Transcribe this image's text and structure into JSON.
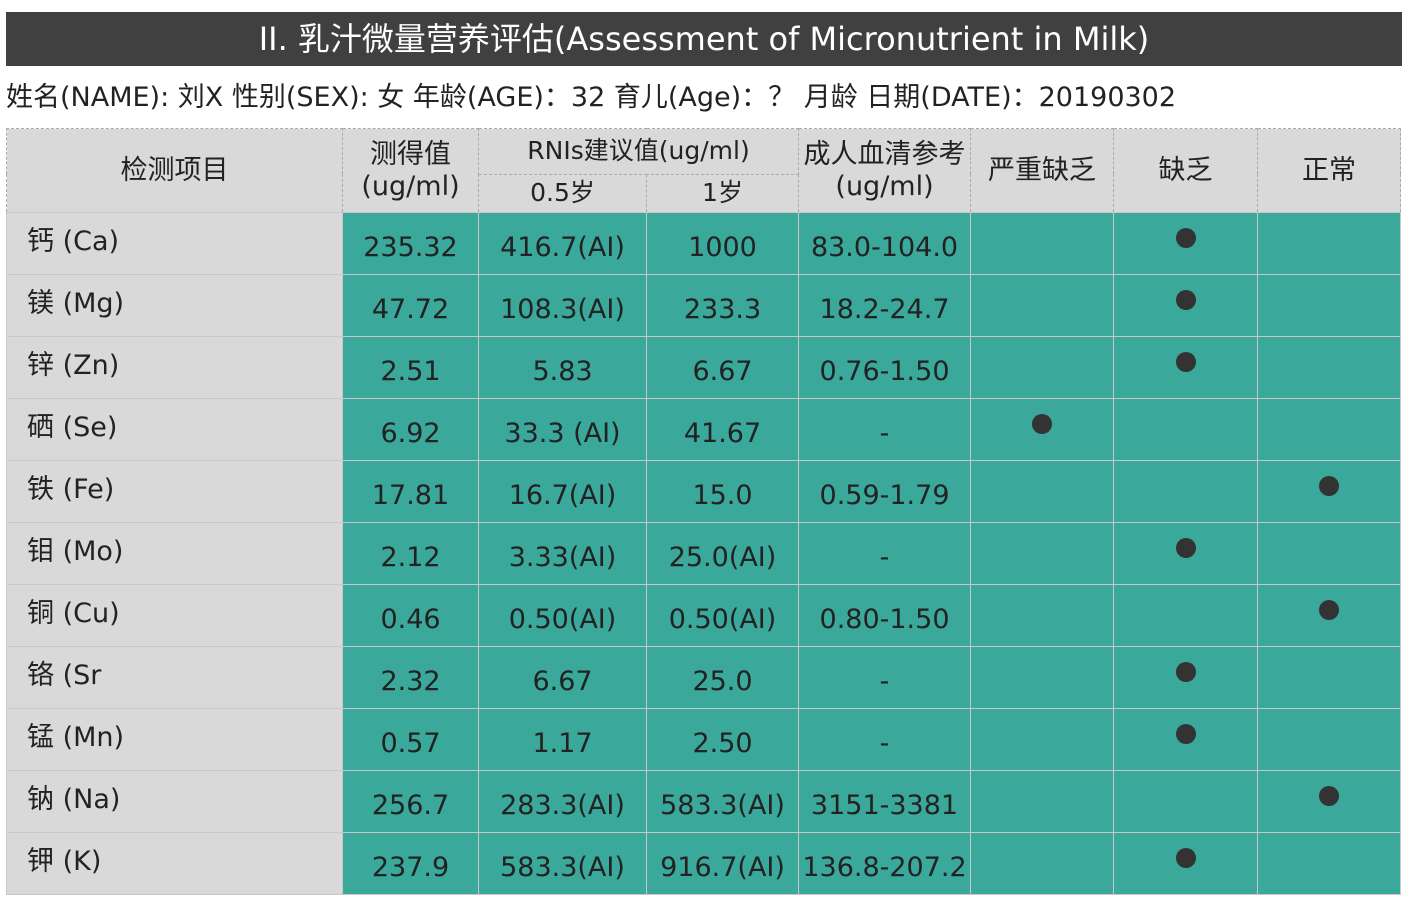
{
  "header": {
    "title": "II. 乳汁微量营养评估(Assessment of Micronutrient in Milk)",
    "info": "姓名(NAME): 刘X 性别(SEX): 女 年龄(AGE)：32 育儿(Age)：？ 月龄 日期(DATE)：20190302"
  },
  "table": {
    "columns": {
      "item": "检测项目",
      "measured": "测得值(ug/ml)",
      "rni": "RNIs建议值(ug/ml)",
      "rni_05": "0.5岁",
      "rni_1": "1岁",
      "adult": "成人血清参考(ug/ml)",
      "severe": "严重缺乏",
      "deficient": "缺乏",
      "normal": "正常"
    },
    "rows": [
      [
        "钙 (Ca)",
        "235.32",
        "416.7(AI)",
        "1000",
        "83.0-104.0"
      ],
      [
        "镁 (Mg)",
        "47.72",
        "108.3(AI)",
        "233.3",
        "18.2-24.7"
      ],
      [
        "锌 (Zn)",
        "2.51",
        "5.83",
        "6.67",
        "0.76-1.50"
      ],
      [
        "硒 (Se)",
        "6.92",
        "33.3 (AI)",
        "41.67",
        "-"
      ],
      [
        "铁 (Fe)",
        "17.81",
        "16.7(AI)",
        "15.0",
        "0.59-1.79"
      ],
      [
        "钼 (Mo)",
        "2.12",
        "3.33(AI)",
        "25.0(AI)",
        "-"
      ],
      [
        "铜 (Cu)",
        "0.46",
        "0.50(AI)",
        "0.50(AI)",
        "0.80-1.50"
      ],
      [
        "铬 (Sr",
        "2.32",
        "6.67",
        "25.0",
        "-"
      ],
      [
        "锰 (Mn)",
        "0.57",
        "1.17",
        "2.50",
        "-"
      ],
      [
        "钠 (Na)",
        "256.7",
        "283.3(AI)",
        "583.3(AI)",
        "3151-3381"
      ],
      [
        "钾 (K)",
        "237.9",
        "583.3(AI)",
        "916.7(AI)",
        "136.8-207.2"
      ]
    ],
    "status": [
      [
        false,
        true,
        false
      ],
      [
        false,
        true,
        false
      ],
      [
        false,
        true,
        false
      ],
      [
        true,
        false,
        false
      ],
      [
        false,
        false,
        true
      ],
      [
        false,
        true,
        false
      ],
      [
        false,
        false,
        true
      ],
      [
        false,
        true,
        false
      ],
      [
        false,
        true,
        false
      ],
      [
        false,
        false,
        true
      ],
      [
        false,
        true,
        false
      ]
    ]
  }
}
